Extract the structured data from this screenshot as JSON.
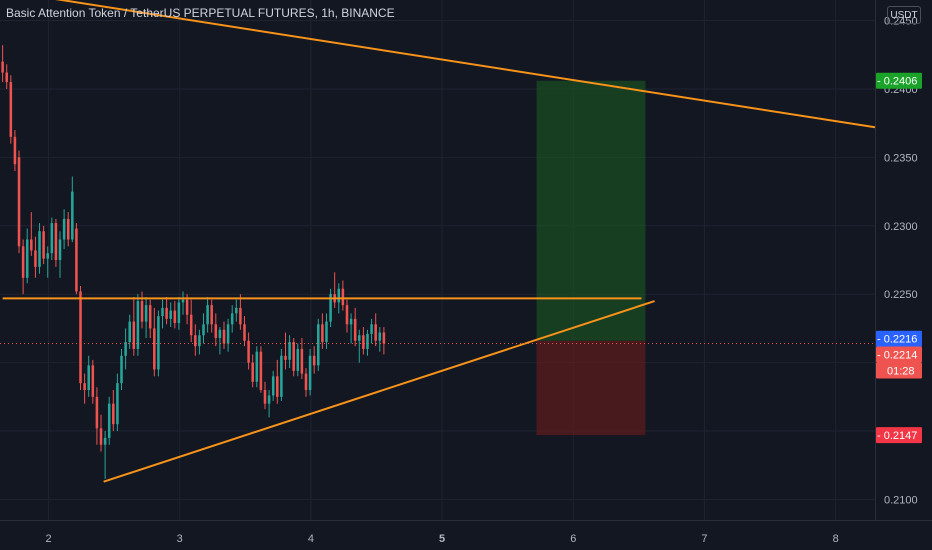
{
  "header": {
    "title": "Basic Attention Token / TetherUS PERPETUAL FUTURES, 1h, BINANCE",
    "currency": "USDT"
  },
  "colors": {
    "background": "#131722",
    "up": "#26a69a",
    "down": "#ef5350",
    "trendline": "#f7931a",
    "target_zone": "#1b5e20",
    "stop_zone": "#6d1a1a",
    "target_tag": "#1aa328",
    "stop_tag": "#f23645",
    "last_price_tag": "#2962ff",
    "current_price_tag": "#ef5350"
  },
  "price_scale": {
    "ticks": [
      "0.2450",
      "0.2400",
      "0.2350",
      "0.2300",
      "0.2250",
      "0.2200",
      "0.2150",
      "0.2100"
    ],
    "tags": [
      {
        "label": "0.2406",
        "kind": "target"
      },
      {
        "label": "0.2216",
        "kind": "last"
      },
      {
        "label": "0.2214",
        "kind": "current"
      },
      {
        "label": "01:28",
        "kind": "countdown"
      },
      {
        "label": "0.2147",
        "kind": "stop"
      }
    ]
  },
  "time_axis": {
    "labels": [
      "2",
      "3",
      "4",
      "5",
      "6",
      "7",
      "8"
    ],
    "bold_label": "5"
  },
  "chart_data": {
    "type": "candlestick",
    "x_unit": "day",
    "ylim": [
      0.2085,
      0.2465
    ],
    "xlim": [
      1.63,
      8.3
    ],
    "grid": true,
    "ohlc_start_day": 1.65,
    "ohlc_step_day": 0.03125,
    "ohlc": [
      [
        0.242,
        0.2432,
        0.2405,
        0.2412
      ],
      [
        0.2412,
        0.2418,
        0.24,
        0.2405
      ],
      [
        0.2405,
        0.241,
        0.236,
        0.2365
      ],
      [
        0.2365,
        0.237,
        0.234,
        0.2345
      ],
      [
        0.235,
        0.2355,
        0.228,
        0.2285
      ],
      [
        0.2285,
        0.229,
        0.225,
        0.2262
      ],
      [
        0.2262,
        0.2298,
        0.2258,
        0.229
      ],
      [
        0.229,
        0.231,
        0.2278,
        0.2282
      ],
      [
        0.2282,
        0.2292,
        0.2262,
        0.227
      ],
      [
        0.227,
        0.2302,
        0.2265,
        0.2296
      ],
      [
        0.2296,
        0.23,
        0.2272,
        0.2276
      ],
      [
        0.2276,
        0.2285,
        0.2262,
        0.228
      ],
      [
        0.228,
        0.2306,
        0.2275,
        0.2302
      ],
      [
        0.2302,
        0.2305,
        0.227,
        0.2275
      ],
      [
        0.2275,
        0.2296,
        0.2262,
        0.229
      ],
      [
        0.229,
        0.2312,
        0.2283,
        0.2305
      ],
      [
        0.2305,
        0.231,
        0.2285,
        0.229
      ],
      [
        0.229,
        0.2336,
        0.2288,
        0.2325
      ],
      [
        0.2298,
        0.2302,
        0.225,
        0.2252
      ],
      [
        0.2252,
        0.2256,
        0.218,
        0.2185
      ],
      [
        0.2185,
        0.2192,
        0.217,
        0.218
      ],
      [
        0.218,
        0.2205,
        0.2175,
        0.2198
      ],
      [
        0.2198,
        0.2202,
        0.217,
        0.2175
      ],
      [
        0.2175,
        0.2182,
        0.214,
        0.2152
      ],
      [
        0.2152,
        0.2162,
        0.2135,
        0.214
      ],
      [
        0.214,
        0.215,
        0.2115,
        0.2145
      ],
      [
        0.2145,
        0.2175,
        0.214,
        0.217
      ],
      [
        0.217,
        0.218,
        0.215,
        0.2155
      ],
      [
        0.2155,
        0.2192,
        0.215,
        0.2185
      ],
      [
        0.2185,
        0.221,
        0.218,
        0.2205
      ],
      [
        0.2205,
        0.2225,
        0.2195,
        0.2215
      ],
      [
        0.2215,
        0.2235,
        0.221,
        0.223
      ],
      [
        0.223,
        0.2248,
        0.2205,
        0.221
      ],
      [
        0.221,
        0.225,
        0.2205,
        0.2245
      ],
      [
        0.2245,
        0.2252,
        0.2225,
        0.223
      ],
      [
        0.223,
        0.2248,
        0.2218,
        0.2242
      ],
      [
        0.2242,
        0.2246,
        0.2218,
        0.2225
      ],
      [
        0.2225,
        0.224,
        0.219,
        0.2195
      ],
      [
        0.2195,
        0.2238,
        0.219,
        0.2234
      ],
      [
        0.2234,
        0.2246,
        0.2225,
        0.224
      ],
      [
        0.224,
        0.2248,
        0.2228,
        0.2232
      ],
      [
        0.2232,
        0.2244,
        0.2226,
        0.2238
      ],
      [
        0.2238,
        0.2245,
        0.2225,
        0.2229
      ],
      [
        0.2229,
        0.2248,
        0.2224,
        0.2244
      ],
      [
        0.2244,
        0.2252,
        0.2235,
        0.2246
      ],
      [
        0.2246,
        0.225,
        0.2228,
        0.2235
      ],
      [
        0.2235,
        0.2246,
        0.2215,
        0.222
      ],
      [
        0.222,
        0.2228,
        0.2205,
        0.2212
      ],
      [
        0.2212,
        0.2224,
        0.2206,
        0.222
      ],
      [
        0.222,
        0.2236,
        0.2214,
        0.2228
      ],
      [
        0.2228,
        0.2248,
        0.2222,
        0.2242
      ],
      [
        0.2242,
        0.2246,
        0.2222,
        0.2228
      ],
      [
        0.2228,
        0.2236,
        0.2212,
        0.2218
      ],
      [
        0.2218,
        0.2226,
        0.2206,
        0.2224
      ],
      [
        0.2224,
        0.223,
        0.221,
        0.2214
      ],
      [
        0.2214,
        0.2232,
        0.2208,
        0.2228
      ],
      [
        0.2228,
        0.2242,
        0.2222,
        0.2236
      ],
      [
        0.2236,
        0.2246,
        0.223,
        0.224
      ],
      [
        0.224,
        0.225,
        0.2224,
        0.2228
      ],
      [
        0.2228,
        0.2234,
        0.2212,
        0.2216
      ],
      [
        0.2216,
        0.2222,
        0.2195,
        0.22
      ],
      [
        0.22,
        0.2206,
        0.2182,
        0.2186
      ],
      [
        0.2186,
        0.2212,
        0.2182,
        0.2208
      ],
      [
        0.2208,
        0.2212,
        0.2178,
        0.218
      ],
      [
        0.218,
        0.2186,
        0.2166,
        0.217
      ],
      [
        0.217,
        0.218,
        0.216,
        0.2176
      ],
      [
        0.2176,
        0.2194,
        0.2172,
        0.219
      ],
      [
        0.219,
        0.2202,
        0.217,
        0.2175
      ],
      [
        0.2175,
        0.221,
        0.2172,
        0.2205
      ],
      [
        0.2205,
        0.2222,
        0.2195,
        0.2202
      ],
      [
        0.2202,
        0.222,
        0.2196,
        0.2215
      ],
      [
        0.2215,
        0.2218,
        0.219,
        0.2194
      ],
      [
        0.2194,
        0.2214,
        0.219,
        0.221
      ],
      [
        0.221,
        0.2218,
        0.2188,
        0.2192
      ],
      [
        0.2192,
        0.2196,
        0.2175,
        0.218
      ],
      [
        0.218,
        0.221,
        0.2176,
        0.2205
      ],
      [
        0.2205,
        0.2212,
        0.2192,
        0.2198
      ],
      [
        0.2198,
        0.2232,
        0.2194,
        0.2228
      ],
      [
        0.2228,
        0.2236,
        0.221,
        0.2215
      ],
      [
        0.2215,
        0.2236,
        0.221,
        0.223
      ],
      [
        0.223,
        0.2254,
        0.2226,
        0.225
      ],
      [
        0.225,
        0.2266,
        0.224,
        0.2244
      ],
      [
        0.2244,
        0.2258,
        0.2236,
        0.2254
      ],
      [
        0.2254,
        0.226,
        0.2238,
        0.2242
      ],
      [
        0.2242,
        0.2246,
        0.2222,
        0.2228
      ],
      [
        0.2228,
        0.2236,
        0.2214,
        0.2232
      ],
      [
        0.2232,
        0.224,
        0.2212,
        0.2216
      ],
      [
        0.2216,
        0.2224,
        0.22,
        0.222
      ],
      [
        0.222,
        0.2226,
        0.2206,
        0.221
      ],
      [
        0.221,
        0.2224,
        0.2205,
        0.2221
      ],
      [
        0.2221,
        0.2232,
        0.2214,
        0.2228
      ],
      [
        0.2228,
        0.2236,
        0.2212,
        0.2216
      ],
      [
        0.2216,
        0.2226,
        0.2208,
        0.2222
      ],
      [
        0.2222,
        0.2226,
        0.2206,
        0.2214
      ]
    ],
    "trendlines": [
      {
        "from": [
          1.9,
          0.2468
        ],
        "to": [
          8.3,
          0.2372
        ]
      },
      {
        "from": [
          1.65,
          0.2247
        ],
        "to": [
          6.52,
          0.2247
        ]
      },
      {
        "from": [
          2.42,
          0.2113
        ],
        "to": [
          6.62,
          0.2245
        ]
      }
    ],
    "position": {
      "x_start": 5.72,
      "x_end": 6.55,
      "entry": 0.2216,
      "target": 0.2406,
      "stop": 0.2147
    },
    "last_price": 0.2216,
    "current_price": 0.2214
  }
}
